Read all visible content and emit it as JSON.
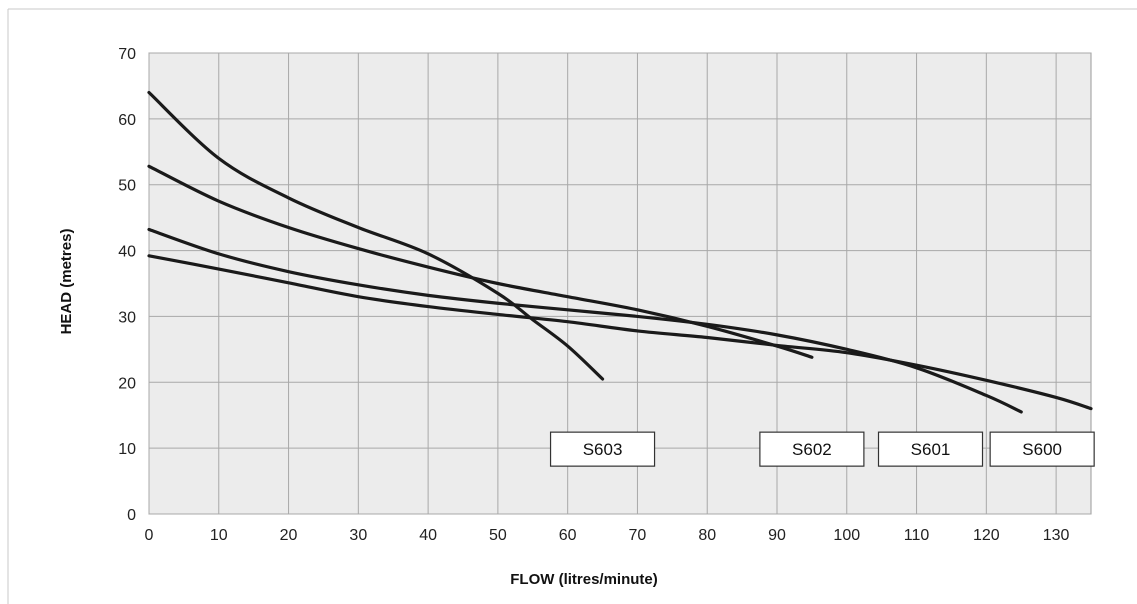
{
  "chart_data": {
    "type": "line",
    "title": "",
    "xlabel": "FLOW (litres/minute)",
    "ylabel": "HEAD (metres)",
    "xlim": [
      0,
      135
    ],
    "ylim": [
      0,
      70
    ],
    "xticks": [
      0,
      10,
      20,
      30,
      40,
      50,
      60,
      70,
      80,
      90,
      100,
      110,
      120,
      130
    ],
    "yticks": [
      0,
      10,
      20,
      30,
      40,
      50,
      60,
      70
    ],
    "grid": true,
    "series": [
      {
        "name": "S603",
        "label_anchor_x": 65,
        "x": [
          0,
          10,
          20,
          30,
          40,
          50,
          55,
          60,
          65
        ],
        "y": [
          64,
          54,
          48,
          43.5,
          39.5,
          33.5,
          29.5,
          25.5,
          20.5
        ]
      },
      {
        "name": "S602",
        "label_anchor_x": 95,
        "x": [
          0,
          10,
          20,
          30,
          40,
          50,
          60,
          70,
          80,
          90,
          95
        ],
        "y": [
          52.8,
          47.5,
          43.5,
          40.3,
          37.5,
          35,
          33,
          31,
          28.5,
          25.5,
          23.8
        ]
      },
      {
        "name": "S601",
        "label_anchor_x": 112,
        "x": [
          0,
          10,
          20,
          30,
          40,
          50,
          60,
          70,
          80,
          90,
          100,
          110,
          120,
          125
        ],
        "y": [
          43.2,
          39.5,
          36.8,
          34.8,
          33.2,
          32,
          31,
          30,
          28.8,
          27.2,
          25,
          22.2,
          18,
          15.5
        ]
      },
      {
        "name": "S600",
        "label_anchor_x": 128,
        "x": [
          0,
          10,
          20,
          30,
          40,
          50,
          60,
          70,
          80,
          90,
          100,
          110,
          120,
          130,
          135
        ],
        "y": [
          39.2,
          37.2,
          35.1,
          33,
          31.5,
          30.3,
          29.2,
          27.8,
          26.8,
          25.6,
          24.5,
          22.6,
          20.3,
          17.7,
          16
        ]
      }
    ]
  }
}
